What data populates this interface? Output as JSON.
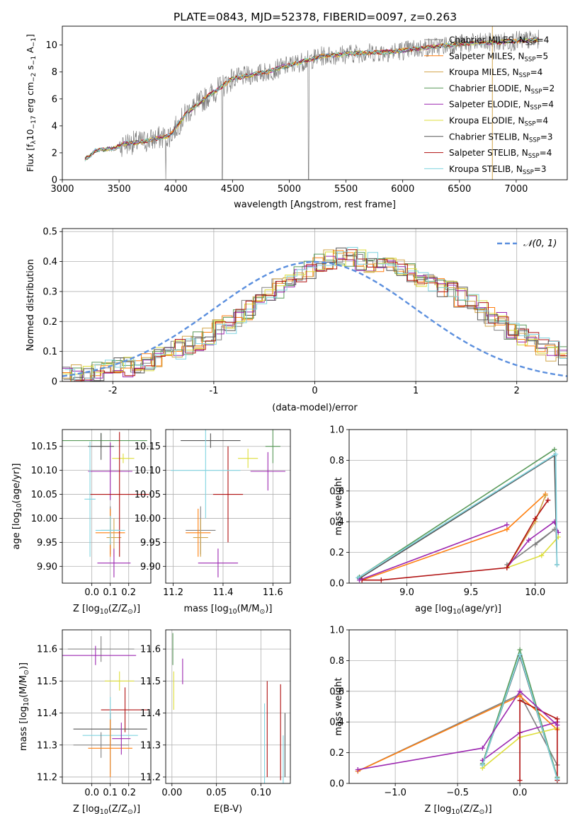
{
  "title": "PLATE=0843, MJD=52378, FIBERID=0097, z=0.263",
  "colors": {
    "Chabrier MILES": "#808080",
    "Salpeter MILES": "#ff7f0e",
    "Kroupa MILES": "#d2a54a",
    "Chabrier ELODIE": "#5a9a5a",
    "Salpeter ELODIE": "#9c27b0",
    "Kroupa ELODIE": "#dede3b",
    "Chabrier STELIB": "#555555",
    "Salpeter STELIB": "#b01010",
    "Kroupa STELIB": "#80d4e0"
  },
  "chart_data": [
    {
      "id": "spectrum",
      "type": "line",
      "xlabel": "wavelength [Angstrom, rest frame]",
      "ylabel": "Flux [f$_\\lambda$10$^{-17}$ erg cm$^{-2}$ s$^{-1}$ A$^{-1}$]",
      "ylabel_parts": [
        "Flux [f",
        "λ",
        "10",
        "−17",
        " erg cm",
        "−2",
        " s",
        "−1",
        " A",
        "−1",
        "]"
      ],
      "xlim": [
        3000,
        7450
      ],
      "ylim": [
        0,
        11.4
      ],
      "xticks": [
        3000,
        3500,
        4000,
        4500,
        5000,
        5500,
        6000,
        6500,
        7000
      ],
      "yticks": [
        0,
        2,
        4,
        6,
        8,
        10
      ],
      "spectrum_points": [
        [
          3200,
          1.5
        ],
        [
          3300,
          2.2
        ],
        [
          3450,
          2.3
        ],
        [
          3550,
          2.7
        ],
        [
          3700,
          2.8
        ],
        [
          3850,
          3.1
        ],
        [
          3950,
          3.3
        ],
        [
          4100,
          5.0
        ],
        [
          4300,
          6.3
        ],
        [
          4500,
          7.5
        ],
        [
          4800,
          8.0
        ],
        [
          5000,
          8.5
        ],
        [
          5300,
          9.2
        ],
        [
          5600,
          9.4
        ],
        [
          5900,
          9.5
        ],
        [
          6200,
          9.8
        ],
        [
          6500,
          10.1
        ],
        [
          6800,
          10.2
        ],
        [
          7200,
          10.4
        ]
      ],
      "legend_position": "upper right",
      "legend": [
        {
          "name": "Chabrier MILES",
          "n": "4"
        },
        {
          "name": "Salpeter MILES",
          "n": "5"
        },
        {
          "name": "Kroupa MILES",
          "n": "4"
        },
        {
          "name": "Chabrier ELODIE",
          "n": "2"
        },
        {
          "name": "Salpeter ELODIE",
          "n": "4"
        },
        {
          "name": "Kroupa ELODIE",
          "n": "4"
        },
        {
          "name": "Chabrier STELIB",
          "n": "3"
        },
        {
          "name": "Salpeter STELIB",
          "n": "4"
        },
        {
          "name": "Kroupa STELIB",
          "n": "3"
        }
      ],
      "legend_label_prefix": "N",
      "legend_label_sub": "SSP"
    },
    {
      "id": "residuals",
      "type": "histogram",
      "xlabel": "(data-model)/error",
      "ylabel": "Normed distribution",
      "xlim": [
        -2.5,
        2.5
      ],
      "ylim": [
        0,
        0.51
      ],
      "xticks": [
        -2,
        -1,
        0,
        1,
        2
      ],
      "yticks": [
        0.0,
        0.1,
        0.2,
        0.3,
        0.4,
        0.5
      ],
      "grid": true,
      "legend_position": "upper right",
      "gaussian_label": "𝒩(0, 1)",
      "bin_width": 0.1,
      "bin_start": -2.5,
      "envelope": [
        0.02,
        0.025,
        0.03,
        0.035,
        0.04,
        0.045,
        0.05,
        0.058,
        0.068,
        0.08,
        0.094,
        0.108,
        0.122,
        0.137,
        0.153,
        0.172,
        0.192,
        0.215,
        0.24,
        0.264,
        0.287,
        0.31,
        0.333,
        0.354,
        0.373,
        0.39,
        0.405,
        0.415,
        0.415,
        0.405,
        0.398,
        0.393,
        0.386,
        0.375,
        0.36,
        0.345,
        0.33,
        0.315,
        0.3,
        0.282,
        0.262,
        0.24,
        0.218,
        0.196,
        0.175,
        0.155,
        0.136,
        0.118,
        0.102,
        0.088
      ]
    },
    {
      "id": "z-age",
      "type": "errorbar",
      "xlabel_parts": [
        "Z [log",
        "10",
        "(Z/Z",
        "⊙",
        ")]"
      ],
      "ylabel_parts": [
        "age  [log",
        "10",
        "(age/yr)]"
      ],
      "xlim": [
        -0.16,
        0.32
      ],
      "ylim": [
        9.865,
        10.185
      ],
      "xticks": [
        0.0,
        0.1,
        0.2
      ],
      "xticklabels": [
        "0.0",
        "0.1",
        "0.2"
      ],
      "yticks": [
        9.9,
        9.95,
        10.0,
        10.05,
        10.1,
        10.15
      ],
      "yticklabels": [
        "9.90",
        "9.95",
        "10.00",
        "10.05",
        "10.10",
        "10.15"
      ],
      "grid": true,
      "points": [
        {
          "series": "Chabrier MILES",
          "x": 0.1,
          "xerr": 0.05,
          "y": 9.975,
          "yerr": 0.05
        },
        {
          "series": "Salpeter MILES",
          "x": 0.1,
          "xerr": 0.08,
          "y": 9.97,
          "yerr": 0.05
        },
        {
          "series": "Kroupa MILES",
          "x": 0.12,
          "xerr": 0.04,
          "y": 9.96,
          "yerr": 0.04
        },
        {
          "series": "Chabrier ELODIE",
          "x": 0.05,
          "xerr": 0.25,
          "y": 10.162,
          "yerr": 0.015
        },
        {
          "series": "Salpeter ELODIE",
          "x": 0.1,
          "xerr": 0.12,
          "y": 10.098,
          "yerr": 0.06
        },
        {
          "series": "Kroupa ELODIE",
          "x": 0.17,
          "xerr": 0.06,
          "y": 10.125,
          "yerr": 0.01
        },
        {
          "series": "Chabrier STELIB",
          "x": 0.05,
          "xerr": 0.07,
          "y": 10.15,
          "yerr": 0.028
        },
        {
          "series": "Salpeter STELIB",
          "x": 0.15,
          "xerr": 0.16,
          "y": 10.05,
          "yerr": 0.13
        },
        {
          "series": "Kroupa STELIB",
          "x": -0.01,
          "xerr": 0.03,
          "y": 10.04,
          "yerr": 0.12
        },
        {
          "series": "Kroupa STELIB",
          "x": 0.1,
          "xerr": 0.08,
          "y": 9.975,
          "yerr": 0.03
        },
        {
          "series": "Salpeter ELODIE",
          "x": 0.12,
          "xerr": 0.09,
          "y": 9.907,
          "yerr": 0.03
        }
      ]
    },
    {
      "id": "mass-age",
      "type": "errorbar",
      "xlabel_parts": [
        "mass [log",
        "10",
        "(M/M",
        "⊙",
        ")]"
      ],
      "xlim": [
        11.17,
        11.67
      ],
      "ylim": [
        9.865,
        10.185
      ],
      "xticks": [
        11.2,
        11.4,
        11.6
      ],
      "xticklabels": [
        "11.2",
        "11.4",
        "11.6"
      ],
      "yticks": [
        9.9,
        9.95,
        10.0,
        10.05,
        10.1,
        10.15
      ],
      "yticklabels": [
        "9.90",
        "9.95",
        "10.00",
        "10.05",
        "10.10",
        "10.15"
      ],
      "grid": true,
      "points": [
        {
          "series": "Chabrier MILES",
          "x": 11.31,
          "xerr": 0.06,
          "y": 9.975,
          "yerr": 0.05
        },
        {
          "series": "Salpeter MILES",
          "x": 11.3,
          "xerr": 0.05,
          "y": 9.97,
          "yerr": 0.05
        },
        {
          "series": "Kroupa MILES",
          "x": 11.31,
          "xerr": 0.03,
          "y": 9.96,
          "yerr": 0.04
        },
        {
          "series": "Chabrier ELODIE",
          "x": 11.6,
          "xerr": 0.03,
          "y": 10.15,
          "yerr": 0.035
        },
        {
          "series": "Salpeter ELODIE",
          "x": 11.58,
          "xerr": 0.07,
          "y": 10.098,
          "yerr": 0.04
        },
        {
          "series": "Kroupa ELODIE",
          "x": 11.5,
          "xerr": 0.04,
          "y": 10.125,
          "yerr": 0.02
        },
        {
          "series": "Chabrier STELIB",
          "x": 11.35,
          "xerr": 0.12,
          "y": 10.162,
          "yerr": 0.015
        },
        {
          "series": "Salpeter STELIB",
          "x": 11.42,
          "xerr": 0.06,
          "y": 10.05,
          "yerr": 0.1
        },
        {
          "series": "Kroupa STELIB",
          "x": 11.33,
          "xerr": 0.14,
          "y": 10.1,
          "yerr": 0.1
        },
        {
          "series": "Salpeter ELODIE",
          "x": 11.38,
          "xerr": 0.08,
          "y": 9.907,
          "yerr": 0.03
        }
      ]
    },
    {
      "id": "age-weight",
      "type": "line",
      "xlabel_parts": [
        "age  [log",
        "10",
        "(age/yr)]"
      ],
      "ylabel": "mass weight",
      "xlim": [
        8.55,
        10.25
      ],
      "ylim": [
        0,
        1.0
      ],
      "xticks": [
        9.0,
        9.5,
        10.0
      ],
      "xticklabels": [
        "9.0",
        "9.5",
        "10.0"
      ],
      "yticks": [
        0.0,
        0.2,
        0.4,
        0.6,
        0.8,
        1.0
      ],
      "yticklabels": [
        "0.0",
        "0.2",
        "0.4",
        "0.6",
        "0.8",
        "1.0"
      ],
      "grid": true,
      "series": [
        {
          "name": "Chabrier MILES",
          "x": [
            10.0,
            10.15,
            9.78
          ],
          "y": [
            0.25,
            0.35,
            0.12
          ]
        },
        {
          "name": "Salpeter MILES",
          "x": [
            8.65,
            9.78,
            10.08
          ],
          "y": [
            0.02,
            0.35,
            0.58
          ]
        },
        {
          "name": "Kroupa MILES",
          "x": [
            9.78,
            10.0,
            10.08
          ],
          "y": [
            0.1,
            0.4,
            0.57
          ]
        },
        {
          "name": "Chabrier ELODIE",
          "x": [
            8.63,
            10.15
          ],
          "y": [
            0.04,
            0.87
          ]
        },
        {
          "name": "Salpeter ELODIE",
          "x": [
            9.78,
            9.95,
            10.15,
            10.18
          ],
          "y": [
            0.1,
            0.28,
            0.4,
            0.33
          ]
        },
        {
          "name": "Kroupa ELODIE",
          "x": [
            9.78,
            10.05,
            10.18
          ],
          "y": [
            0.1,
            0.18,
            0.3
          ]
        },
        {
          "name": "Chabrier STELIB",
          "x": [
            8.63,
            10.15,
            10.17
          ],
          "y": [
            0.03,
            0.83,
            0.12
          ]
        },
        {
          "name": "Salpeter STELIB",
          "x": [
            8.65,
            8.8,
            9.78,
            10.0,
            10.1
          ],
          "y": [
            0.02,
            0.02,
            0.1,
            0.42,
            0.54
          ]
        },
        {
          "name": "Kroupa STELIB",
          "x": [
            8.62,
            10.16,
            10.17
          ],
          "y": [
            0.035,
            0.84,
            0.12
          ]
        },
        {
          "name": "Salpeter ELODIE",
          "x": [
            8.63,
            9.78
          ],
          "y": [
            0.02,
            0.38
          ]
        }
      ]
    },
    {
      "id": "z-mass",
      "type": "errorbar",
      "xlabel_parts": [
        "Z [log",
        "10",
        "(Z/Z",
        "⊙",
        ")]"
      ],
      "ylabel_parts": [
        "mass [log",
        "10",
        "(M/M",
        "⊙",
        ")]"
      ],
      "xlim": [
        -0.16,
        0.32
      ],
      "ylim": [
        11.18,
        11.66
      ],
      "xticks": [
        0.0,
        0.1,
        0.2
      ],
      "xticklabels": [
        "0.0",
        "0.1",
        "0.2"
      ],
      "yticks": [
        11.2,
        11.3,
        11.4,
        11.5,
        11.6
      ],
      "yticklabels": [
        "11.2",
        "11.3",
        "11.4",
        "11.5",
        "11.6"
      ],
      "grid": true,
      "points": [
        {
          "series": "Chabrier MILES",
          "x": 0.05,
          "xerr": 0.18,
          "y": 11.6,
          "yerr": 0.04
        },
        {
          "series": "Salpeter ELODIE",
          "x": 0.02,
          "xerr": 0.22,
          "y": 11.58,
          "yerr": 0.03
        },
        {
          "series": "Kroupa ELODIE",
          "x": 0.15,
          "xerr": 0.08,
          "y": 11.5,
          "yerr": 0.03
        },
        {
          "series": "Salpeter STELIB",
          "x": 0.18,
          "xerr": 0.13,
          "y": 11.41,
          "yerr": 0.07
        },
        {
          "series": "Chabrier STELIB",
          "x": 0.1,
          "xerr": 0.2,
          "y": 11.35,
          "yerr": 0.05
        },
        {
          "series": "Kroupa STELIB",
          "x": 0.1,
          "xerr": 0.15,
          "y": 11.33,
          "yerr": 0.12
        },
        {
          "series": "Chabrier MILES",
          "x": 0.05,
          "xerr": 0.15,
          "y": 11.3,
          "yerr": 0.04
        },
        {
          "series": "Salpeter MILES",
          "x": 0.1,
          "xerr": 0.12,
          "y": 11.29,
          "yerr": 0.09
        },
        {
          "series": "Salpeter ELODIE",
          "x": 0.16,
          "xerr": 0.05,
          "y": 11.32,
          "yerr": 0.05
        }
      ]
    },
    {
      "id": "ebv-mass",
      "type": "errorbar",
      "xlabel": "E(B-V)",
      "xlim": [
        -0.007,
        0.133
      ],
      "ylim": [
        11.18,
        11.66
      ],
      "xticks": [
        0.0,
        0.05,
        0.1
      ],
      "xticklabels": [
        "0.00",
        "0.05",
        "0.10"
      ],
      "yticks": [
        11.2,
        11.3,
        11.4,
        11.5,
        11.6
      ],
      "yticklabels": [
        "11.2",
        "11.3",
        "11.4",
        "11.5",
        "11.6"
      ],
      "grid": true,
      "points": [
        {
          "series": "Chabrier ELODIE",
          "x": 0.001,
          "xerr": 0,
          "y": 11.6,
          "yerr": 0.05
        },
        {
          "series": "Salpeter ELODIE",
          "x": 0.012,
          "xerr": 0,
          "y": 11.53,
          "yerr": 0.04
        },
        {
          "series": "Kroupa ELODIE",
          "x": 0.002,
          "xerr": 0,
          "y": 11.47,
          "yerr": 0.06
        },
        {
          "series": "Kroupa STELIB",
          "x": 0.104,
          "xerr": 0,
          "y": 11.3,
          "yerr": 0.13
        },
        {
          "series": "Salpeter STELIB",
          "x": 0.107,
          "xerr": 0,
          "y": 11.35,
          "yerr": 0.15
        },
        {
          "series": "Salpeter STELIB",
          "x": 0.122,
          "xerr": 0,
          "y": 11.34,
          "yerr": 0.15
        },
        {
          "series": "Chabrier STELIB",
          "x": 0.127,
          "xerr": 0,
          "y": 11.3,
          "yerr": 0.1
        },
        {
          "series": "Kroupa STELIB",
          "x": 0.125,
          "xerr": 0,
          "y": 11.25,
          "yerr": 0.08
        }
      ]
    },
    {
      "id": "z-weight",
      "type": "line",
      "xlabel_parts": [
        "Z [log",
        "10",
        "(Z/Z",
        "⊙",
        ")]"
      ],
      "ylabel": "mass weight",
      "xlim": [
        -1.37,
        0.38
      ],
      "ylim": [
        0,
        1.0
      ],
      "xticks": [
        -1.0,
        -0.5,
        0.0
      ],
      "xticklabels": [
        "−1.0",
        "−0.5",
        "0.0"
      ],
      "yticks": [
        0.0,
        0.2,
        0.4,
        0.6,
        0.8,
        1.0
      ],
      "yticklabels": [
        "0.0",
        "0.2",
        "0.4",
        "0.6",
        "0.8",
        "1.0"
      ],
      "grid": true,
      "series": [
        {
          "name": "Chabrier MILES",
          "x": [
            -1.3,
            0.0,
            0.3
          ],
          "y": [
            0.08,
            0.58,
            0.12
          ]
        },
        {
          "name": "Salpeter MILES",
          "x": [
            -1.3,
            0.0,
            0.3,
            0.3
          ],
          "y": [
            0.08,
            0.57,
            0.35,
            0.4
          ]
        },
        {
          "name": "Chabrier ELODIE",
          "x": [
            -0.3,
            0.0,
            0.3
          ],
          "y": [
            0.13,
            0.87,
            0.04
          ]
        },
        {
          "name": "Salpeter ELODIE",
          "x": [
            -0.3,
            0.0,
            0.3
          ],
          "y": [
            0.15,
            0.33,
            0.4
          ]
        },
        {
          "name": "Kroupa ELODIE",
          "x": [
            -0.3,
            0.0,
            0.3
          ],
          "y": [
            0.1,
            0.3,
            0.36
          ]
        },
        {
          "name": "Chabrier STELIB",
          "x": [
            -0.3,
            0.0,
            0.3
          ],
          "y": [
            0.12,
            0.83,
            0.03
          ]
        },
        {
          "name": "Salpeter STELIB",
          "x": [
            0.0,
            0.0,
            0.3,
            0.3
          ],
          "y": [
            0.02,
            0.54,
            0.42,
            0.02
          ]
        },
        {
          "name": "Kroupa STELIB",
          "x": [
            -0.3,
            0.0,
            0.3
          ],
          "y": [
            0.12,
            0.84,
            0.03
          ]
        },
        {
          "name": "Salpeter ELODIE",
          "x": [
            -1.3,
            -0.3,
            0.0,
            0.3
          ],
          "y": [
            0.09,
            0.23,
            0.6,
            0.38
          ]
        }
      ]
    }
  ]
}
